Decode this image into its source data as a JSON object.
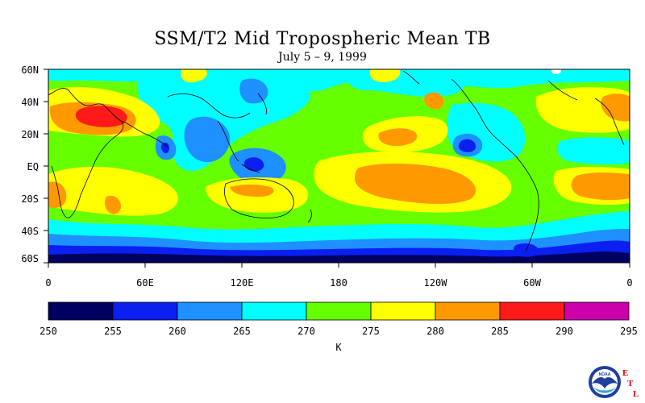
{
  "title": "SSM/T2 Mid Tropospheric Mean TB",
  "subtitle": "July 5 – 9, 1999",
  "map": {
    "lat_labels": [
      "60N",
      "40N",
      "20N",
      "EQ",
      "20S",
      "40S",
      "60S"
    ],
    "lon_labels": [
      "0",
      "60E",
      "120E",
      "180",
      "120W",
      "60W",
      "0"
    ]
  },
  "colorbar": {
    "unit": "K",
    "ticks": [
      "250",
      "255",
      "260",
      "265",
      "270",
      "275",
      "280",
      "285",
      "290",
      "295"
    ],
    "colors": [
      "#000060",
      "#0a1ff0",
      "#1e90ff",
      "#00ffff",
      "#66ff00",
      "#ffff00",
      "#ff9900",
      "#ff1a1a",
      "#cc00aa"
    ]
  },
  "logo": {
    "name": "NOAA",
    "etl_letters": [
      "E",
      "T",
      "L"
    ],
    "etl_color": "#e00000"
  }
}
